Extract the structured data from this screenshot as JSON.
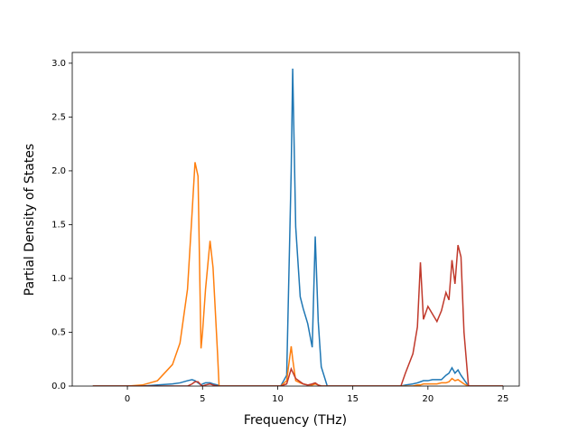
{
  "chart_data": {
    "type": "line",
    "xlabel": "Frequency (THz)",
    "ylabel": "Partial Density of States",
    "x": [
      -2.3,
      0,
      1,
      2,
      3,
      3.5,
      4,
      4.3,
      4.5,
      4.7,
      4.9,
      5.0,
      5.2,
      5.5,
      5.7,
      6.0,
      6.1,
      7,
      9,
      10.2,
      10.6,
      10.9,
      11.0,
      11.2,
      11.5,
      11.7,
      12.0,
      12.3,
      12.5,
      12.7,
      12.9,
      13.3,
      15,
      18.2,
      18.5,
      19.0,
      19.3,
      19.5,
      19.7,
      20.0,
      20.3,
      20.6,
      20.9,
      21.2,
      21.4,
      21.6,
      21.8,
      22.0,
      22.2,
      22.4,
      22.7,
      23,
      25
    ],
    "series": [
      {
        "color": "#1f77b4",
        "values": [
          0,
          0,
          0,
          0.01,
          0.02,
          0.03,
          0.05,
          0.06,
          0.05,
          0.03,
          0.01,
          0.02,
          0.03,
          0.03,
          0.02,
          0.01,
          0,
          0,
          0,
          0,
          0.1,
          2.0,
          2.95,
          1.48,
          0.83,
          0.72,
          0.58,
          0.36,
          1.39,
          0.6,
          0.18,
          0,
          0,
          0,
          0.01,
          0.02,
          0.03,
          0.04,
          0.05,
          0.05,
          0.06,
          0.06,
          0.06,
          0.1,
          0.12,
          0.17,
          0.12,
          0.15,
          0.1,
          0.06,
          0,
          0,
          0
        ]
      },
      {
        "color": "#ff7f0e",
        "values": [
          0,
          0,
          0.01,
          0.05,
          0.2,
          0.4,
          0.9,
          1.6,
          2.08,
          1.95,
          0.35,
          0.5,
          0.9,
          1.35,
          1.1,
          0.3,
          0,
          0,
          0,
          0,
          0.05,
          0.37,
          0.25,
          0.05,
          0.03,
          0.02,
          0.01,
          0.01,
          0.02,
          0.01,
          0,
          0,
          0,
          0,
          0,
          0,
          0.01,
          0.01,
          0.02,
          0.02,
          0.02,
          0.02,
          0.03,
          0.03,
          0.04,
          0.07,
          0.05,
          0.06,
          0.04,
          0.02,
          0,
          0,
          0
        ]
      },
      {
        "color": "#c0392b",
        "values": [
          0,
          0,
          0,
          0,
          0,
          0,
          0,
          0.02,
          0.04,
          0.04,
          0.01,
          0,
          0.01,
          0.02,
          0.01,
          0,
          0,
          0,
          0,
          0,
          0.02,
          0.16,
          0.13,
          0.07,
          0.04,
          0.02,
          0.01,
          0.02,
          0.03,
          0.01,
          0,
          0,
          0,
          0,
          0.12,
          0.3,
          0.55,
          1.15,
          0.62,
          0.74,
          0.67,
          0.6,
          0.7,
          0.87,
          0.8,
          1.17,
          0.95,
          1.31,
          1.2,
          0.5,
          0,
          0,
          0
        ]
      }
    ],
    "xlim": [
      -3.67,
      26.08
    ],
    "xticks": [
      0,
      5,
      10,
      15,
      20,
      25
    ],
    "ylim": [
      0,
      3.1
    ],
    "yticks": [
      {
        "value": 0,
        "label": "0.0"
      },
      {
        "value": 0.5,
        "label": "0.5"
      },
      {
        "value": 1,
        "label": "1.0"
      },
      {
        "value": 1.5,
        "label": "1.5"
      },
      {
        "value": 2,
        "label": "2.0"
      },
      {
        "value": 2.5,
        "label": "2.5"
      },
      {
        "value": 3,
        "label": "3.0"
      }
    ]
  }
}
